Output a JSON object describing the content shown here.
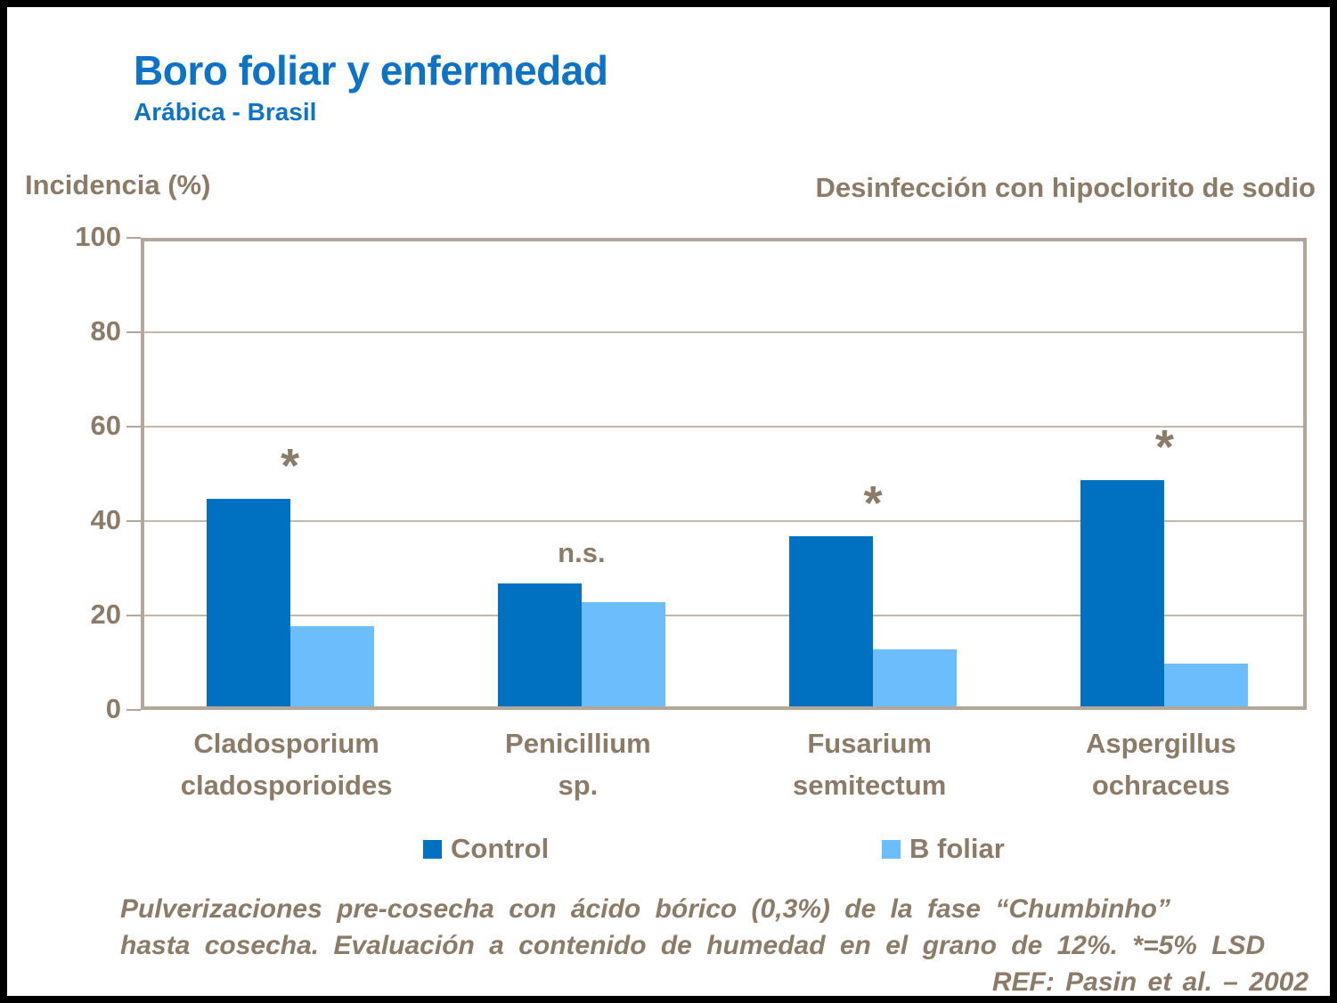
{
  "header": {
    "title": "Boro foliar y enfermedad",
    "subtitle": "Arábica - Brasil",
    "axis_title": "Incidencia (%)",
    "right_header": "Desinfección con hipoclorito de sodio"
  },
  "chart_data": {
    "type": "bar",
    "title": "Boro foliar y enfermedad",
    "ylabel": "Incidencia (%)",
    "ylim": [
      0,
      100
    ],
    "yticks": [
      0,
      20,
      40,
      60,
      80,
      100
    ],
    "grid": true,
    "legend_position": "bottom",
    "categories": [
      "Cladosporium\ncladosporioides",
      "Penicillium\nsp.",
      "Fusarium\nsemitectum",
      "Aspergillus\nochraceus"
    ],
    "series": [
      {
        "name": "Control",
        "color": "#0070C0",
        "values": [
          44,
          26,
          36,
          48
        ]
      },
      {
        "name": "B foliar",
        "color": "#6CBDFC",
        "values": [
          17,
          22,
          12,
          9
        ]
      }
    ],
    "annotations": [
      "*",
      "n.s.",
      "*",
      "*"
    ]
  },
  "legend": {
    "control_label": "Control",
    "bfoliar_label": "B foliar"
  },
  "footer": {
    "line1": "Pulverizaciones pre-cosecha con ácido bórico (0,3%) de la fase “Chumbinho”",
    "line2": "hasta cosecha. Evaluación a contenido de humedad en el grano de 12%. *=5% LSD",
    "ref": "REF: Pasin et al. – 2002"
  },
  "colors": {
    "title_blue": "#0e72c6",
    "text_brown": "#8b7b69",
    "control_bar": "#0070C0",
    "bfoliar_bar": "#6CBDFC",
    "gridline": "#c3b8aa",
    "plot_border": "#b2a79a"
  }
}
